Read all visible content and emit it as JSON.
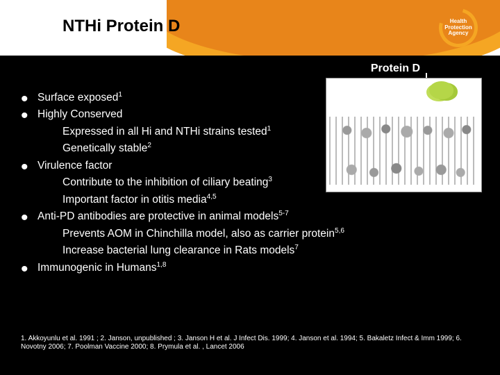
{
  "slide": {
    "title": "NTHi Protein D",
    "background_color": "#000000",
    "header_band_color": "#ffffff",
    "swoosh_colors": [
      "#f5a623",
      "#e8851a"
    ]
  },
  "logo": {
    "line1": "Health",
    "line2": "Protection",
    "line3": "Agency",
    "ring_color": "#f5a623",
    "text_color": "#ffffff"
  },
  "figure": {
    "label": "Protein D",
    "label_color": "#ffffff",
    "protein_highlight_color": "#b5d648",
    "background_color": "#ffffff",
    "description": "membrane cross-section with highlighted Protein D cluster"
  },
  "body": {
    "text_color": "#ffffff",
    "font_size_pt": 12,
    "items": [
      {
        "text": "Surface exposed",
        "sup": "1"
      },
      {
        "text": "Highly Conserved",
        "sub": [
          {
            "text": "Expressed in all Hi and NTHi  strains tested",
            "sup": "1"
          },
          {
            "text": "Genetically stable",
            "sup": "2"
          }
        ]
      },
      {
        "text": "Virulence factor",
        "sub": [
          {
            "text": "Contribute to the inhibition of ciliary beating",
            "sup": "3"
          },
          {
            "text": "Important factor in otitis media",
            "sup": "4,5"
          }
        ]
      },
      {
        "text": "Anti-PD antibodies are protective in animal models",
        "sup": "5-7",
        "sub": [
          {
            "text": "Prevents AOM in Chinchilla model, also as carrier protein",
            "sup": "5,6"
          },
          {
            "text": "Increase bacterial lung clearance in Rats models",
            "sup": "7"
          }
        ]
      },
      {
        "text": "Immunogenic in Humans",
        "sup": "1,8"
      }
    ]
  },
  "references": {
    "text": "1. Akkoyunlu et al. 1991 ; 2. Janson, unpublished ; 3. Janson H et al. J Infect Dis. 1999; 4. Janson et al. 1994; 5. Bakaletz Infect & Imm 1999; 6. Novotny 2006; 7. Poolman Vaccine 2000; 8. Prymula et al. , Lancet 2006",
    "font_size_pt": 7.5,
    "text_color": "#ffffff"
  }
}
